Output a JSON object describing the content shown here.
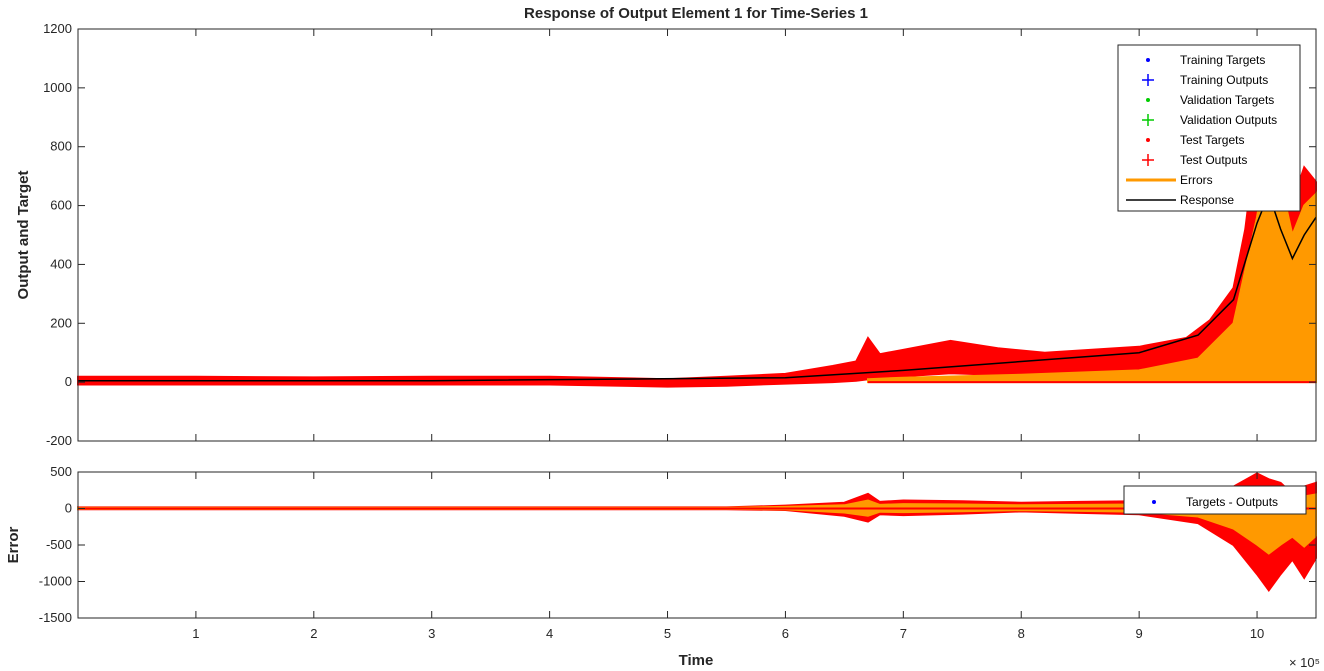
{
  "colors": {
    "training": "#0000ff",
    "validation": "#00cc00",
    "test": "#ff0000",
    "errors": "#ff9900",
    "response": "#000000",
    "axis": "#262626"
  },
  "chart_data": [
    {
      "type": "line",
      "title": "Response of Output Element 1 for Time-Series 1",
      "xlabel": "",
      "ylabel": "Output and Target",
      "xlim": [
        0,
        1050000
      ],
      "ylim": [
        -200,
        1200
      ],
      "x_ticks": [
        100000,
        200000,
        300000,
        400000,
        500000,
        600000,
        700000,
        800000,
        900000,
        1000000
      ],
      "x_tick_labels": [
        "1",
        "2",
        "3",
        "4",
        "5",
        "6",
        "7",
        "8",
        "9",
        "10"
      ],
      "y_ticks": [
        -200,
        0,
        200,
        400,
        600,
        800,
        1000,
        1200
      ],
      "y_tick_labels": [
        "-200",
        "0",
        "200",
        "400",
        "600",
        "800",
        "1000",
        "1200"
      ],
      "grid": false,
      "legend_position": "top-right",
      "legend": [
        {
          "label": "Training Targets",
          "marker": "dot",
          "color": "#0000ff"
        },
        {
          "label": "Training Outputs",
          "marker": "plus",
          "color": "#0000ff"
        },
        {
          "label": "Validation Targets",
          "marker": "dot",
          "color": "#00cc00"
        },
        {
          "label": "Validation Outputs",
          "marker": "plus",
          "color": "#00cc00"
        },
        {
          "label": "Test Targets",
          "marker": "dot",
          "color": "#ff0000"
        },
        {
          "label": "Test Outputs",
          "marker": "plus",
          "color": "#ff0000"
        },
        {
          "label": "Errors",
          "marker": "line",
          "color": "#ff9900"
        },
        {
          "label": "Response",
          "marker": "line",
          "color": "#000000"
        }
      ],
      "series": [
        {
          "name": "Test Targets",
          "x": [
            0,
            100000,
            200000,
            300000,
            400000,
            500000,
            550000,
            600000,
            640000,
            660000,
            670000,
            680000,
            700000,
            740000,
            780000,
            820000,
            860000,
            900000,
            940000,
            960000,
            980000,
            990000,
            1000000,
            1010000,
            1020000,
            1030000,
            1040000,
            1050000
          ],
          "upper": [
            18,
            18,
            16,
            18,
            18,
            10,
            18,
            28,
            55,
            70,
            150,
            95,
            110,
            140,
            115,
            100,
            110,
            120,
            150,
            210,
            320,
            520,
            840,
            1120,
            870,
            610,
            730,
            680
          ],
          "lower": [
            -8,
            -8,
            -8,
            -8,
            -8,
            -15,
            -12,
            -5,
            0,
            5,
            10,
            10,
            20,
            30,
            25,
            25,
            30,
            35,
            45,
            80,
            140,
            260,
            420,
            520,
            380,
            390,
            380,
            420
          ]
        },
        {
          "name": "Errors",
          "x": [
            670000,
            700000,
            800000,
            900000,
            950000,
            980000,
            1000000,
            1010000,
            1020000,
            1030000,
            1040000,
            1050000
          ],
          "upper": [
            10,
            15,
            25,
            40,
            80,
            200,
            560,
            800,
            680,
            500,
            600,
            640
          ],
          "lower": [
            0,
            0,
            0,
            0,
            0,
            0,
            0,
            0,
            0,
            0,
            0,
            0
          ]
        },
        {
          "name": "Response",
          "x": [
            0,
            300000,
            600000,
            700000,
            800000,
            900000,
            950000,
            980000,
            1000000,
            1010000,
            1020000,
            1030000,
            1040000,
            1050000
          ],
          "y": [
            5,
            5,
            15,
            40,
            70,
            100,
            160,
            280,
            540,
            640,
            520,
            420,
            500,
            560
          ]
        }
      ]
    },
    {
      "type": "line",
      "title": "",
      "xlabel": "Time",
      "ylabel": "Error",
      "x_multiplier": "× 10⁵",
      "xlim": [
        0,
        1050000
      ],
      "ylim": [
        -1500,
        500
      ],
      "x_ticks": [
        100000,
        200000,
        300000,
        400000,
        500000,
        600000,
        700000,
        800000,
        900000,
        1000000
      ],
      "x_tick_labels": [
        "1",
        "2",
        "3",
        "4",
        "5",
        "6",
        "7",
        "8",
        "9",
        "10"
      ],
      "y_ticks": [
        -1500,
        -1000,
        -500,
        0,
        500
      ],
      "y_tick_labels": [
        "-1500",
        "-1000",
        "-500",
        "0",
        "500"
      ],
      "grid": false,
      "legend_position": "top-right",
      "legend": [
        {
          "label": "Targets - Outputs",
          "marker": "dot",
          "color": "#0000ff"
        }
      ],
      "series": [
        {
          "name": "Targets - Outputs",
          "x": [
            0,
            300000,
            550000,
            600000,
            650000,
            670000,
            680000,
            700000,
            750000,
            800000,
            850000,
            900000,
            950000,
            980000,
            1000000,
            1010000,
            1020000,
            1030000,
            1040000,
            1050000
          ],
          "upper": [
            15,
            15,
            15,
            40,
            80,
            200,
            90,
            110,
            100,
            80,
            90,
            100,
            150,
            300,
            480,
            400,
            350,
            200,
            300,
            350
          ],
          "lower": [
            -10,
            -10,
            -10,
            -20,
            -100,
            -180,
            -80,
            -90,
            -70,
            -40,
            -60,
            -80,
            -200,
            -500,
            -900,
            -1120,
            -900,
            -700,
            -950,
            -680
          ]
        }
      ]
    }
  ]
}
